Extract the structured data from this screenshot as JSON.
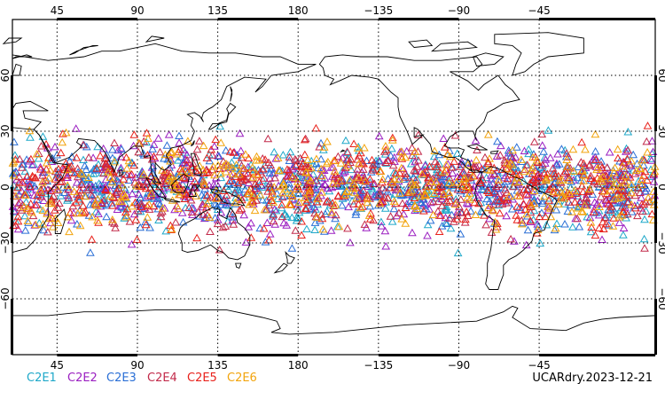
{
  "chart_data": {
    "type": "scatter",
    "projection": "equirectangular",
    "center_longitude": 180,
    "lon_range": [
      20,
      380
    ],
    "lat_range": [
      -90,
      90
    ],
    "grid": true,
    "grid_style": "dotted",
    "x_ticks": [
      {
        "lon": 45,
        "label": "45"
      },
      {
        "lon": 90,
        "label": "90"
      },
      {
        "lon": 135,
        "label": "135"
      },
      {
        "lon": 180,
        "label": "180"
      },
      {
        "lon": 225,
        "label": "−135"
      },
      {
        "lon": 270,
        "label": "−90"
      },
      {
        "lon": 315,
        "label": "−45"
      }
    ],
    "y_ticks": [
      {
        "lat": 60,
        "label": "60"
      },
      {
        "lat": 30,
        "label": "30"
      },
      {
        "lat": 0,
        "label": "0"
      },
      {
        "lat": -30,
        "label": "−30"
      },
      {
        "lat": -60,
        "label": "−60"
      }
    ],
    "marker": "open-triangle",
    "series": [
      {
        "name": "C2E1",
        "color": "#1fa8c9"
      },
      {
        "name": "C2E2",
        "color": "#9b1fc1"
      },
      {
        "name": "C2E3",
        "color": "#2a6fd6"
      },
      {
        "name": "C2E4",
        "color": "#c22a4a"
      },
      {
        "name": "C2E5",
        "color": "#e8211b"
      },
      {
        "name": "C2E6",
        "color": "#f2a40d"
      }
    ],
    "latitude_coverage": [
      -45,
      45
    ]
  },
  "footer": {
    "product_label": "UCARdry.2023-12-21"
  },
  "colors": {
    "coastline": "#000000",
    "frame": "#000000",
    "background": "#ffffff"
  }
}
